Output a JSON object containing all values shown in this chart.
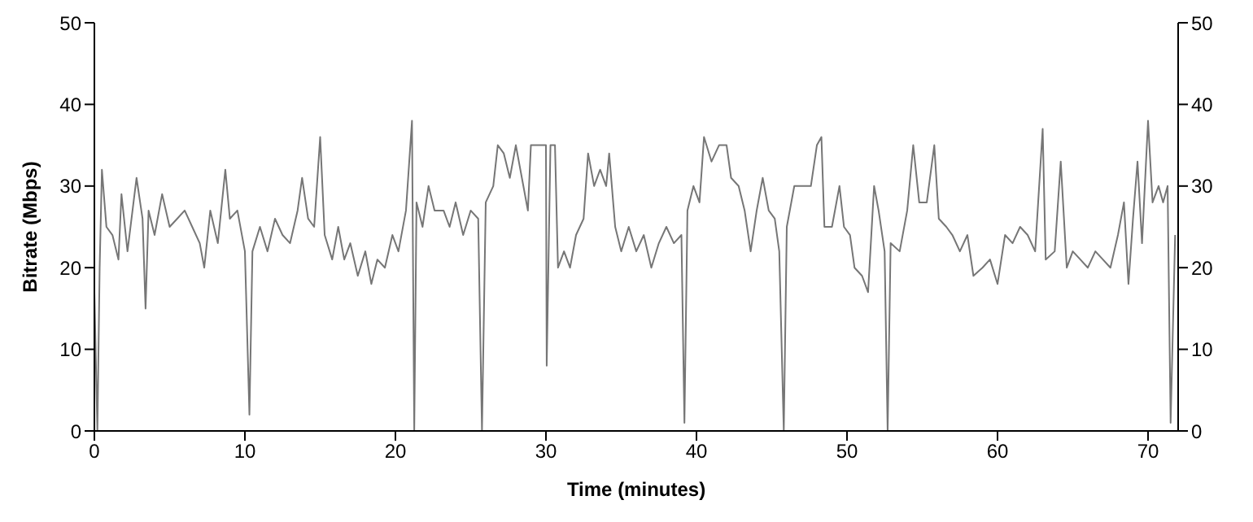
{
  "chart_data": {
    "type": "line",
    "xlabel": "Time (minutes)",
    "ylabel": "Bitrate (Mbps)",
    "xlim": [
      0,
      72
    ],
    "xticks": [
      0,
      10,
      20,
      30,
      40,
      50,
      60,
      70
    ],
    "ylim": [
      0,
      50
    ],
    "yticks": [
      0,
      10,
      20,
      30,
      40,
      50
    ],
    "y2lim": [
      0,
      50
    ],
    "y2ticks": [
      0,
      10,
      20,
      30,
      40,
      50
    ],
    "marker": "none",
    "line_style": "solid",
    "series": [
      {
        "color": "#767676",
        "x": [
          0,
          0.2,
          0.35,
          0.5,
          0.8,
          1.2,
          1.6,
          1.8,
          2.2,
          2.6,
          2.8,
          3.2,
          3.4,
          3.6,
          4.0,
          4.5,
          5.0,
          5.5,
          6.0,
          6.5,
          7.0,
          7.3,
          7.7,
          8.2,
          8.7,
          9.0,
          9.5,
          10.0,
          10.3,
          10.5,
          11.0,
          11.5,
          12.0,
          12.5,
          13.0,
          13.5,
          13.8,
          14.2,
          14.6,
          15.0,
          15.3,
          15.8,
          16.2,
          16.6,
          17.0,
          17.5,
          18.0,
          18.4,
          18.8,
          19.3,
          19.8,
          20.2,
          20.7,
          21.1,
          21.25,
          21.4,
          21.8,
          22.2,
          22.6,
          23.2,
          23.6,
          24.0,
          24.5,
          25.0,
          25.5,
          25.75,
          26.0,
          26.5,
          26.8,
          27.2,
          27.6,
          28.0,
          28.5,
          28.8,
          29.0,
          29.5,
          30.0,
          30.05,
          30.3,
          30.6,
          30.8,
          31.2,
          31.6,
          32.0,
          32.5,
          32.8,
          33.2,
          33.6,
          34.0,
          34.2,
          34.6,
          35.0,
          35.5,
          36.0,
          36.5,
          37.0,
          37.5,
          38.0,
          38.5,
          39.0,
          39.2,
          39.4,
          39.8,
          40.2,
          40.5,
          41.0,
          41.5,
          42.0,
          42.3,
          42.8,
          43.2,
          43.6,
          44.0,
          44.4,
          44.8,
          45.2,
          45.5,
          45.8,
          46.0,
          46.5,
          47.0,
          47.6,
          48.0,
          48.3,
          48.5,
          49.0,
          49.5,
          49.8,
          50.2,
          50.5,
          51.0,
          51.4,
          51.8,
          52.1,
          52.5,
          52.7,
          52.9,
          53.5,
          54.0,
          54.4,
          54.8,
          55.3,
          55.8,
          56.1,
          56.6,
          57.0,
          57.5,
          58.0,
          58.4,
          59.0,
          59.5,
          60.0,
          60.5,
          61.0,
          61.5,
          62.0,
          62.5,
          63.0,
          63.2,
          63.8,
          64.2,
          64.6,
          65.0,
          65.5,
          66.0,
          66.5,
          67.0,
          67.5,
          68.0,
          68.4,
          68.7,
          69.0,
          69.3,
          69.6,
          70.0,
          70.3,
          70.7,
          71.0,
          71.3,
          71.5,
          71.8
        ],
        "values": [
          17,
          0,
          20,
          32,
          25,
          24,
          21,
          29,
          22,
          28,
          31,
          26,
          15,
          27,
          24,
          29,
          25,
          26,
          27,
          25,
          23,
          20,
          27,
          23,
          32,
          26,
          27,
          22,
          2,
          22,
          25,
          22,
          26,
          24,
          23,
          27,
          31,
          26,
          25,
          36,
          24,
          21,
          25,
          21,
          23,
          19,
          22,
          18,
          21,
          20,
          24,
          22,
          27,
          38,
          0,
          28,
          25,
          30,
          27,
          27,
          25,
          28,
          24,
          27,
          26,
          0,
          28,
          30,
          35,
          34,
          31,
          35,
          30,
          27,
          35,
          35,
          35,
          8,
          35,
          35,
          20,
          22,
          20,
          24,
          26,
          34,
          30,
          32,
          30,
          34,
          25,
          22,
          25,
          22,
          24,
          20,
          23,
          25,
          23,
          24,
          1,
          27,
          30,
          28,
          36,
          33,
          35,
          35,
          31,
          30,
          27,
          22,
          27,
          31,
          27,
          26,
          22,
          0,
          25,
          30,
          30,
          30,
          35,
          36,
          25,
          25,
          30,
          25,
          24,
          20,
          19,
          17,
          30,
          27,
          22,
          0,
          23,
          22,
          27,
          35,
          28,
          28,
          35,
          26,
          25,
          24,
          22,
          24,
          19,
          20,
          21,
          18,
          24,
          23,
          25,
          24,
          22,
          37,
          21,
          22,
          33,
          20,
          22,
          21,
          20,
          22,
          21,
          20,
          24,
          28,
          18,
          26,
          33,
          23,
          38,
          28,
          30,
          28,
          30,
          1,
          24
        ]
      }
    ]
  }
}
